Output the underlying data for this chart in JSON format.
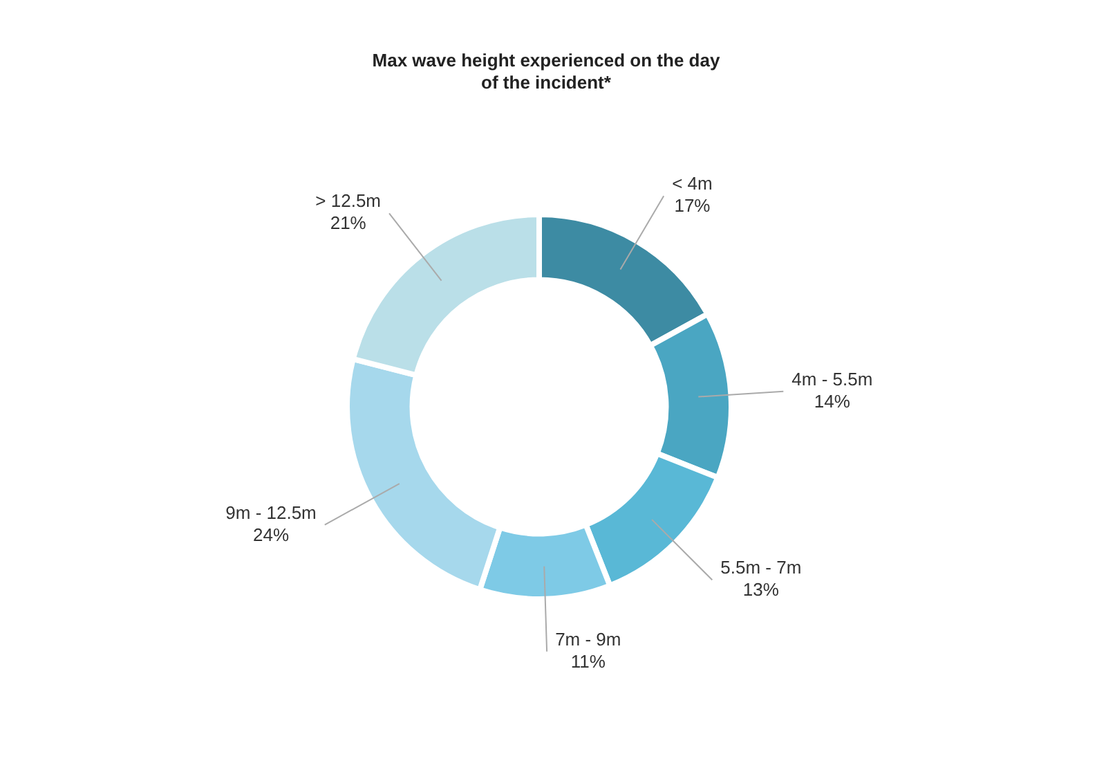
{
  "chart_data": {
    "type": "donut",
    "title": "Max wave height experienced on the day of the incident*",
    "categories": [
      "< 4m",
      "4m - 5.5m",
      "5.5m - 7m",
      "7m - 9m",
      "9m - 12.5m",
      "> 12.5m"
    ],
    "values": [
      17,
      14,
      13,
      11,
      24,
      21
    ],
    "value_labels": [
      "17%",
      "14%",
      "13%",
      "11%",
      "24%",
      "21%"
    ],
    "colors": [
      "#3d8ba3",
      "#4aa6c2",
      "#59b8d6",
      "#7ecae6",
      "#a6d8ec",
      "#badfe8"
    ],
    "legend": false
  }
}
